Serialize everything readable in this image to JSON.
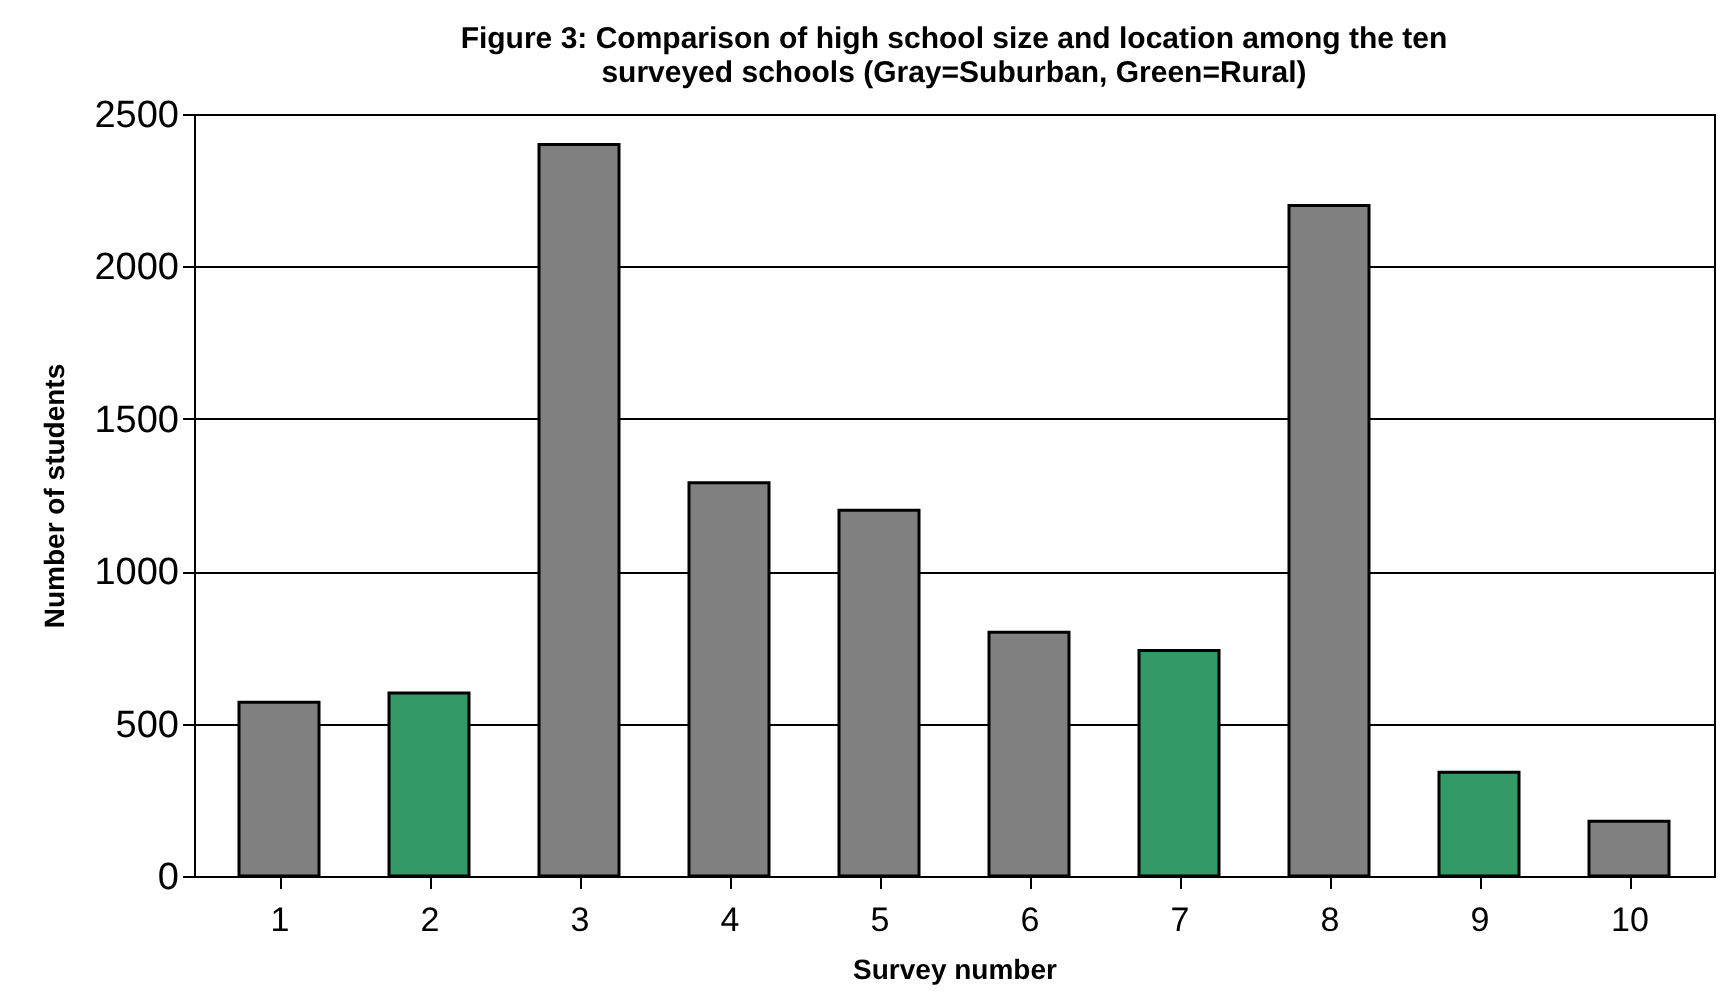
{
  "chart_data": {
    "type": "bar",
    "title": [
      "Figure 3: Comparison of high school size and location among the ten",
      "surveyed schools (Gray=Suburban, Green=Rural)"
    ],
    "xlabel": "Survey number",
    "ylabel": "Number of students",
    "categories": [
      "1",
      "2",
      "3",
      "4",
      "5",
      "6",
      "7",
      "8",
      "9",
      "10"
    ],
    "values": [
      570,
      600,
      2400,
      1290,
      1200,
      800,
      740,
      2200,
      340,
      180
    ],
    "colors": [
      "#808080",
      "#339966",
      "#808080",
      "#808080",
      "#808080",
      "#808080",
      "#339966",
      "#808080",
      "#339966",
      "#808080"
    ],
    "ylim": [
      0,
      2500
    ],
    "yticks": [
      0,
      500,
      1000,
      1500,
      2000,
      2500
    ],
    "grid": "y"
  }
}
